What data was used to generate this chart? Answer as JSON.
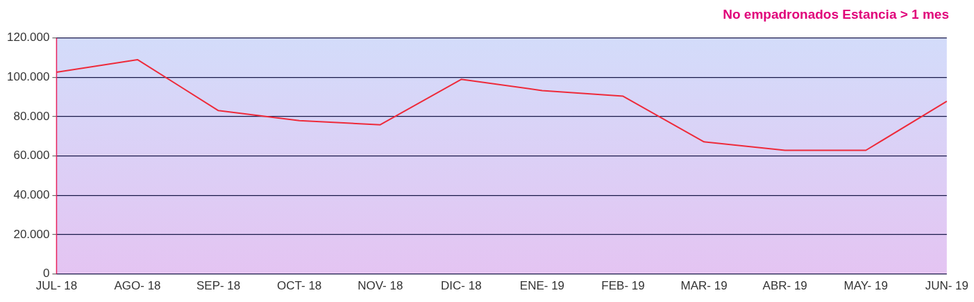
{
  "chart_data": {
    "type": "line",
    "title": "No empadronados Estancia > 1 mes",
    "categories": [
      "JUL- 18",
      "AGO- 18",
      "SEP- 18",
      "OCT- 18",
      "NOV- 18",
      "DIC- 18",
      "ENE- 19",
      "FEB- 19",
      "MAR- 19",
      "ABR- 19",
      "MAY- 19",
      "JUN- 19"
    ],
    "series": [
      {
        "color": "#ee2a3a",
        "values": [
          102600,
          109000,
          83100,
          78000,
          75900,
          99000,
          93300,
          90400,
          67200,
          62900,
          62900,
          87800
        ]
      }
    ],
    "ylim": [
      0,
      120000
    ],
    "yticks": [
      0,
      {
        "value": 20000,
        "label": "20.000"
      },
      {
        "value": 40000,
        "label": "40.000"
      },
      {
        "value": 60000,
        "label": "60.000"
      },
      {
        "value": 80000,
        "label": "80.000"
      },
      {
        "value": 100000,
        "label": "100.000"
      },
      {
        "value": 120000,
        "label": "120.000"
      }
    ],
    "grid": "y",
    "legend": false,
    "marker": "none",
    "line_style": "solid"
  }
}
